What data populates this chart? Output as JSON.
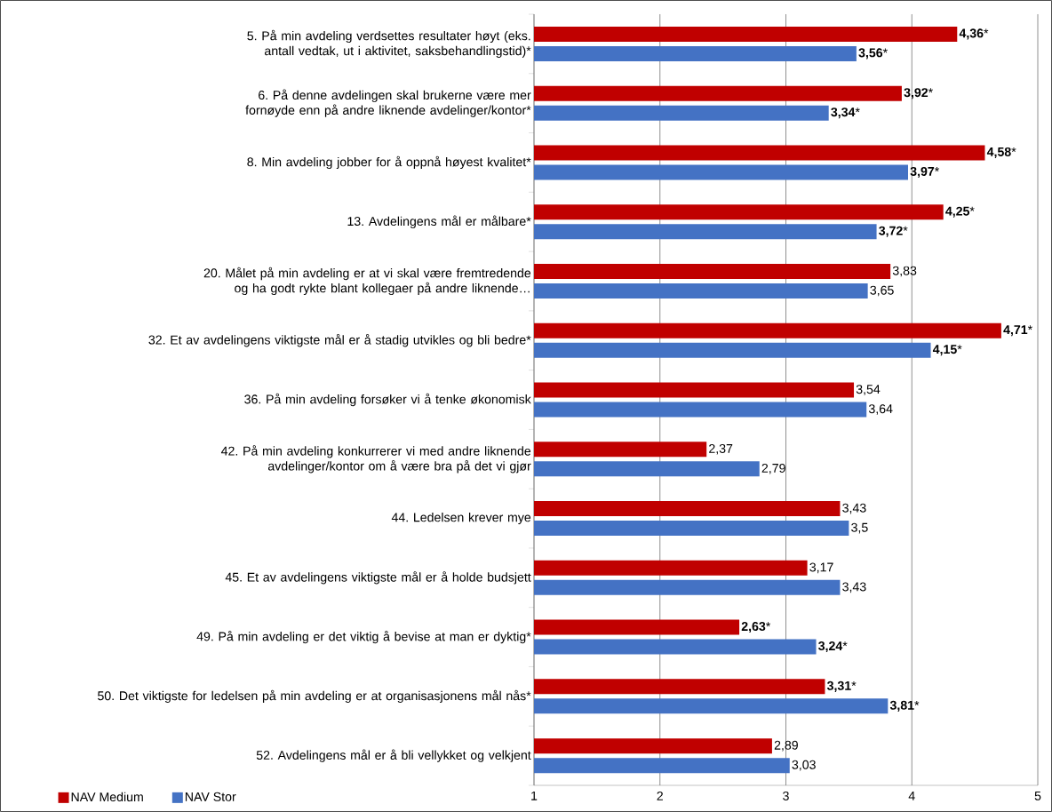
{
  "chart_data": {
    "type": "bar",
    "orientation": "horizontal",
    "categories": [
      "5. På min avdeling verdsettes resultater høyt (eks. antall vedtak, ut i aktivitet, saksbehandlingstid)*",
      "6. På denne avdelingen skal brukerne være mer fornøyde enn på andre liknende avdelinger/kontor*",
      "8. Min avdeling jobber for å oppnå høyest kvalitet*",
      "13. Avdelingens mål er målbare*",
      "20. Målet på min avdeling er at vi skal være fremtredende og ha godt rykte blant kollegaer på andre liknende…",
      "32. Et av avdelingens viktigste mål er å stadig utvikles og bli bedre*",
      "36. På min avdeling forsøker vi å tenke økonomisk",
      "42. På min avdeling konkurrerer vi med andre liknende avdelinger/kontor om å være bra på det vi gjør",
      "44. Ledelsen krever mye",
      "45. Et av avdelingens viktigste mål er å holde budsjett",
      "49. På min avdeling er det viktig å bevise at man er dyktig*",
      "50. Det viktigste for ledelsen på min avdeling er at organisasjonens mål nås*",
      "52. Avdelingens mål er å bli vellykket og velkjent"
    ],
    "series": [
      {
        "name": "NAV Medium",
        "color": "#c00000",
        "values": [
          4.36,
          3.92,
          4.58,
          4.25,
          3.83,
          4.71,
          3.54,
          2.37,
          3.43,
          3.17,
          2.63,
          3.31,
          2.89
        ],
        "value_labels": [
          "**4,36***",
          "**3,92***",
          "**4,58***",
          "**4,25***",
          "3,83",
          "**4,71***",
          "3,54",
          "2,37",
          "3,43",
          "3,17",
          "**2,63***",
          "**3,31***",
          "2,89"
        ]
      },
      {
        "name": "NAV Stor",
        "color": "#4472c4",
        "values": [
          3.56,
          3.34,
          3.97,
          3.72,
          3.65,
          4.15,
          3.64,
          2.79,
          3.5,
          3.43,
          3.24,
          3.81,
          3.03
        ],
        "value_labels": [
          "**3,56***",
          "**3,34***",
          "**3,97***",
          "**3,72***",
          "3,65",
          "**4,15***",
          "3,64",
          "2,79",
          "3,5",
          "3,43",
          "**3,24***",
          "**3,81***",
          "3,03"
        ]
      }
    ],
    "xlim": [
      1,
      5
    ],
    "xticks": [
      1,
      2,
      3,
      4,
      5
    ],
    "grid": "x",
    "legend": "bottom left"
  }
}
